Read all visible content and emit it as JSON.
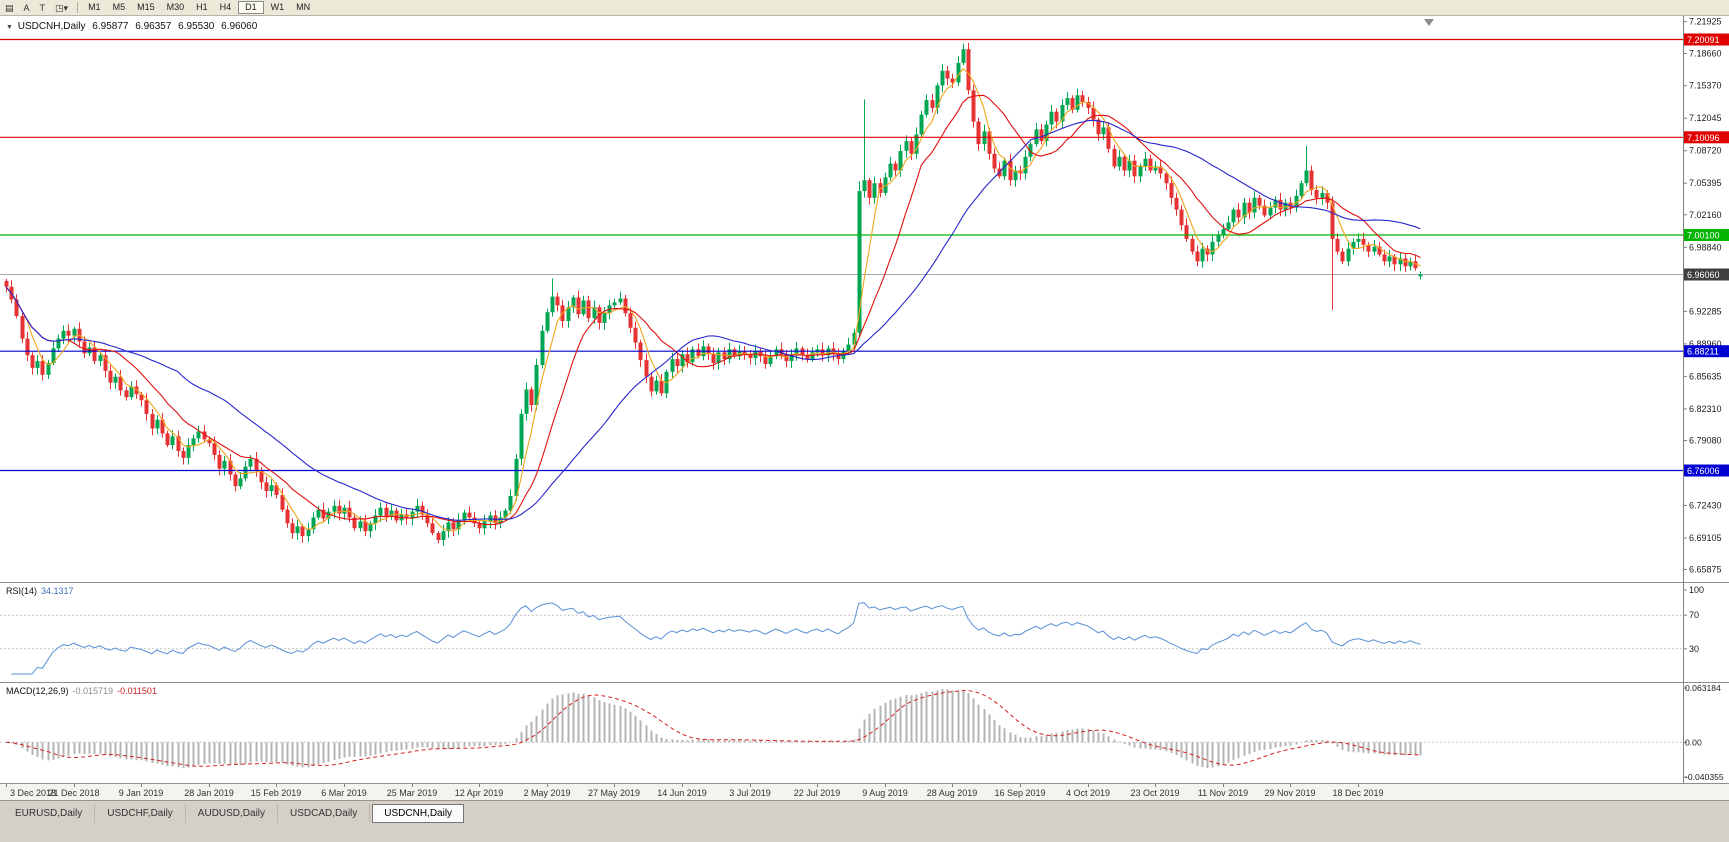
{
  "app": {
    "frame_color": "#d4d0c8",
    "toolbar_bg": "#ece9d8"
  },
  "toolbar": {
    "tools": [
      {
        "name": "chart-type-icon",
        "glyph": "▤"
      },
      {
        "name": "cursor-icon",
        "glyph": "A"
      },
      {
        "name": "text-icon",
        "glyph": "T"
      },
      {
        "name": "draw-tools-icon",
        "glyph": "◳"
      }
    ],
    "draw_tools_caret": "▾",
    "timeframes": [
      "M1",
      "M5",
      "M15",
      "M30",
      "H1",
      "H4",
      "D1",
      "W1",
      "MN"
    ],
    "active_timeframe": "D1"
  },
  "legend": {
    "dropdown_glyph": "▼",
    "symbol": "USDCNH,Daily",
    "open": "6.95877",
    "high": "6.96357",
    "low": "6.95530",
    "close": "6.96060"
  },
  "price_axis": {
    "ticks": [
      "7.21925",
      "7.18660",
      "7.15370",
      "7.12045",
      "7.08720",
      "7.05395",
      "7.02160",
      "6.98840",
      "6.92285",
      "6.88960",
      "6.85635",
      "6.82310",
      "6.79080",
      "6.72430",
      "6.69105",
      "6.65875"
    ]
  },
  "current_price": {
    "value": 6.9606,
    "label": "6.96060",
    "badge_color": "#3f3f3f",
    "line_color": "#a8a8a8"
  },
  "levels": [
    {
      "value": 7.20091,
      "label": "7.20091",
      "color": "#e00000"
    },
    {
      "value": 7.10096,
      "label": "7.10096",
      "color": "#e00000"
    },
    {
      "value": 7.001,
      "label": "7.00100",
      "color": "#00b400"
    },
    {
      "value": 6.88211,
      "label": "6.88211",
      "color": "#0000d2"
    },
    {
      "value": 6.76006,
      "label": "6.76006",
      "color": "#0000d2"
    }
  ],
  "rsi_panel": {
    "name": "RSI(14)",
    "value": "34.1317",
    "axis_labels": [
      "100",
      "70",
      "30"
    ],
    "axis_values": [
      100,
      70,
      30
    ],
    "guide_levels": [
      70,
      30
    ],
    "line_color": "#5a8fd6",
    "range": [
      0,
      100
    ]
  },
  "macd_panel": {
    "name": "MACD(12,26,9)",
    "value_main": "-0.015719",
    "value_signal": "-0.011501",
    "axis_labels": [
      "0.063184",
      "0.00",
      "-0.040355"
    ],
    "axis_values": [
      0.063184,
      0,
      -0.040355
    ],
    "histogram_color": "#b4b4b4",
    "signal_color": "#d42020",
    "range": [
      -0.040355,
      0.063184
    ]
  },
  "tabs": [
    {
      "label": "EURUSD,Daily",
      "active": false
    },
    {
      "label": "USDCHF,Daily",
      "active": false
    },
    {
      "label": "AUDUSD,Daily",
      "active": false
    },
    {
      "label": "USDCAD,Daily",
      "active": false
    },
    {
      "label": "USDCNH,Daily",
      "active": true
    }
  ],
  "chart_data": {
    "type": "candlestick",
    "title": "USDCNH,Daily",
    "symbol": "USDCNH",
    "timeframe": "Daily",
    "ohlc_current": {
      "open": 6.95877,
      "high": 6.96357,
      "low": 6.9553,
      "close": 6.9606
    },
    "ylim": [
      6.646,
      7.225
    ],
    "label_stride": 13,
    "x_labels": [
      "3 Dec 2018",
      "21 Dec 2018",
      "9 Jan 2019",
      "28 Jan 2019",
      "15 Feb 2019",
      "6 Mar 2019",
      "25 Mar 2019",
      "12 Apr 2019",
      "2 May 2019",
      "27 May 2019",
      "14 Jun 2019",
      "3 Jul 2019",
      "22 Jul 2019",
      "9 Aug 2019",
      "28 Aug 2019",
      "16 Sep 2019",
      "4 Oct 2019",
      "23 Oct 2019",
      "11 Nov 2019",
      "29 Nov 2019",
      "18 Dec 2019"
    ],
    "candle_colors": {
      "up": "#00a651",
      "down": "#e63232"
    },
    "closes": [
      6.948,
      6.935,
      6.918,
      6.895,
      6.878,
      6.865,
      6.872,
      6.858,
      6.87,
      6.885,
      6.895,
      6.903,
      6.898,
      6.905,
      6.892,
      6.88,
      6.886,
      6.872,
      6.878,
      6.862,
      6.85,
      6.856,
      6.842,
      6.835,
      6.846,
      6.838,
      6.832,
      6.818,
      6.803,
      6.812,
      6.798,
      6.786,
      6.795,
      6.78,
      6.773,
      6.786,
      6.793,
      6.8,
      6.792,
      6.788,
      6.776,
      6.762,
      6.77,
      6.756,
      6.744,
      6.752,
      6.764,
      6.772,
      6.76,
      6.748,
      6.739,
      6.745,
      6.735,
      6.72,
      6.706,
      6.696,
      6.703,
      6.693,
      6.7,
      6.712,
      6.72,
      6.711,
      6.718,
      6.724,
      6.716,
      6.722,
      6.712,
      6.701,
      6.708,
      6.698,
      6.706,
      6.714,
      6.722,
      6.713,
      6.719,
      6.709,
      6.715,
      6.711,
      6.718,
      6.724,
      6.715,
      6.706,
      6.696,
      6.689,
      6.698,
      6.707,
      6.7,
      6.709,
      6.717,
      6.712,
      6.706,
      6.701,
      6.708,
      6.714,
      6.706,
      6.712,
      6.719,
      6.734,
      6.772,
      6.818,
      6.843,
      6.827,
      6.868,
      6.903,
      6.922,
      6.938,
      6.929,
      6.913,
      6.927,
      6.937,
      6.92,
      6.934,
      6.916,
      6.927,
      6.911,
      6.921,
      6.929,
      6.932,
      6.936,
      6.921,
      6.906,
      6.891,
      6.873,
      6.856,
      6.841,
      6.852,
      6.839,
      6.861,
      6.874,
      6.867,
      6.879,
      6.871,
      6.884,
      6.877,
      6.887,
      6.879,
      6.87,
      6.881,
      6.874,
      6.884,
      6.877,
      6.882,
      6.879,
      6.875,
      6.882,
      6.877,
      6.869,
      6.877,
      6.884,
      6.879,
      6.872,
      6.879,
      6.885,
      6.878,
      6.874,
      6.881,
      6.884,
      6.878,
      6.885,
      6.879,
      6.874,
      6.882,
      6.889,
      6.901,
      7.046,
      7.057,
      7.039,
      7.054,
      7.044,
      7.06,
      7.074,
      7.067,
      7.087,
      7.097,
      7.084,
      7.104,
      7.124,
      7.139,
      7.131,
      7.154,
      7.169,
      7.161,
      7.157,
      7.177,
      7.191,
      7.149,
      7.117,
      7.094,
      7.107,
      7.084,
      7.069,
      7.061,
      7.077,
      7.057,
      7.067,
      7.064,
      7.081,
      7.094,
      7.109,
      7.097,
      7.114,
      7.127,
      7.117,
      7.134,
      7.141,
      7.129,
      7.144,
      7.137,
      7.131,
      7.119,
      7.104,
      7.111,
      7.089,
      7.071,
      7.081,
      7.067,
      7.077,
      7.061,
      7.071,
      7.079,
      7.067,
      7.071,
      7.064,
      7.054,
      7.039,
      7.027,
      7.011,
      6.997,
      6.984,
      6.974,
      6.987,
      6.981,
      6.994,
      7.001,
      7.007,
      7.014,
      7.027,
      7.019,
      7.034,
      7.024,
      7.039,
      7.031,
      7.021,
      7.029,
      7.037,
      7.027,
      7.034,
      7.029,
      7.041,
      7.054,
      7.067,
      7.047,
      7.039,
      7.044,
      7.034,
      6.997,
      6.984,
      6.974,
      6.987,
      6.994,
      6.997,
      6.991,
      6.984,
      6.989,
      6.981,
      6.974,
      6.979,
      6.971,
      6.977,
      6.969,
      6.974,
      6.967,
      6.9606
    ],
    "overrides": {
      "57": {
        "l": 6.686
      },
      "83": {
        "l": 6.6855
      },
      "105": {
        "h": 6.9565
      },
      "164": {
        "l": 6.896,
        "h": 7.056
      },
      "165": {
        "h": 7.1397
      },
      "184": {
        "h": 7.1965
      },
      "250": {
        "h": 7.092
      },
      "255": {
        "l": 6.9245
      },
      "272": {
        "o": 6.95877,
        "h": 6.96357,
        "l": 6.9553,
        "c": 6.9606
      }
    },
    "moving_averages": [
      {
        "name": "fast-ma",
        "period": 5,
        "color": "#efa51c"
      },
      {
        "name": "mid-ma",
        "period": 13,
        "color": "#e01010"
      },
      {
        "name": "slow-ma",
        "period": 34,
        "color": "#2626cc"
      }
    ],
    "horizontal_levels": [
      7.20091,
      7.10096,
      7.001,
      6.88211,
      6.76006
    ],
    "rsi": {
      "period": 14,
      "current": 34.1317
    },
    "macd": {
      "fast": 12,
      "slow": 26,
      "signal": 9,
      "current_main": -0.015719,
      "current_signal": -0.011501
    }
  }
}
